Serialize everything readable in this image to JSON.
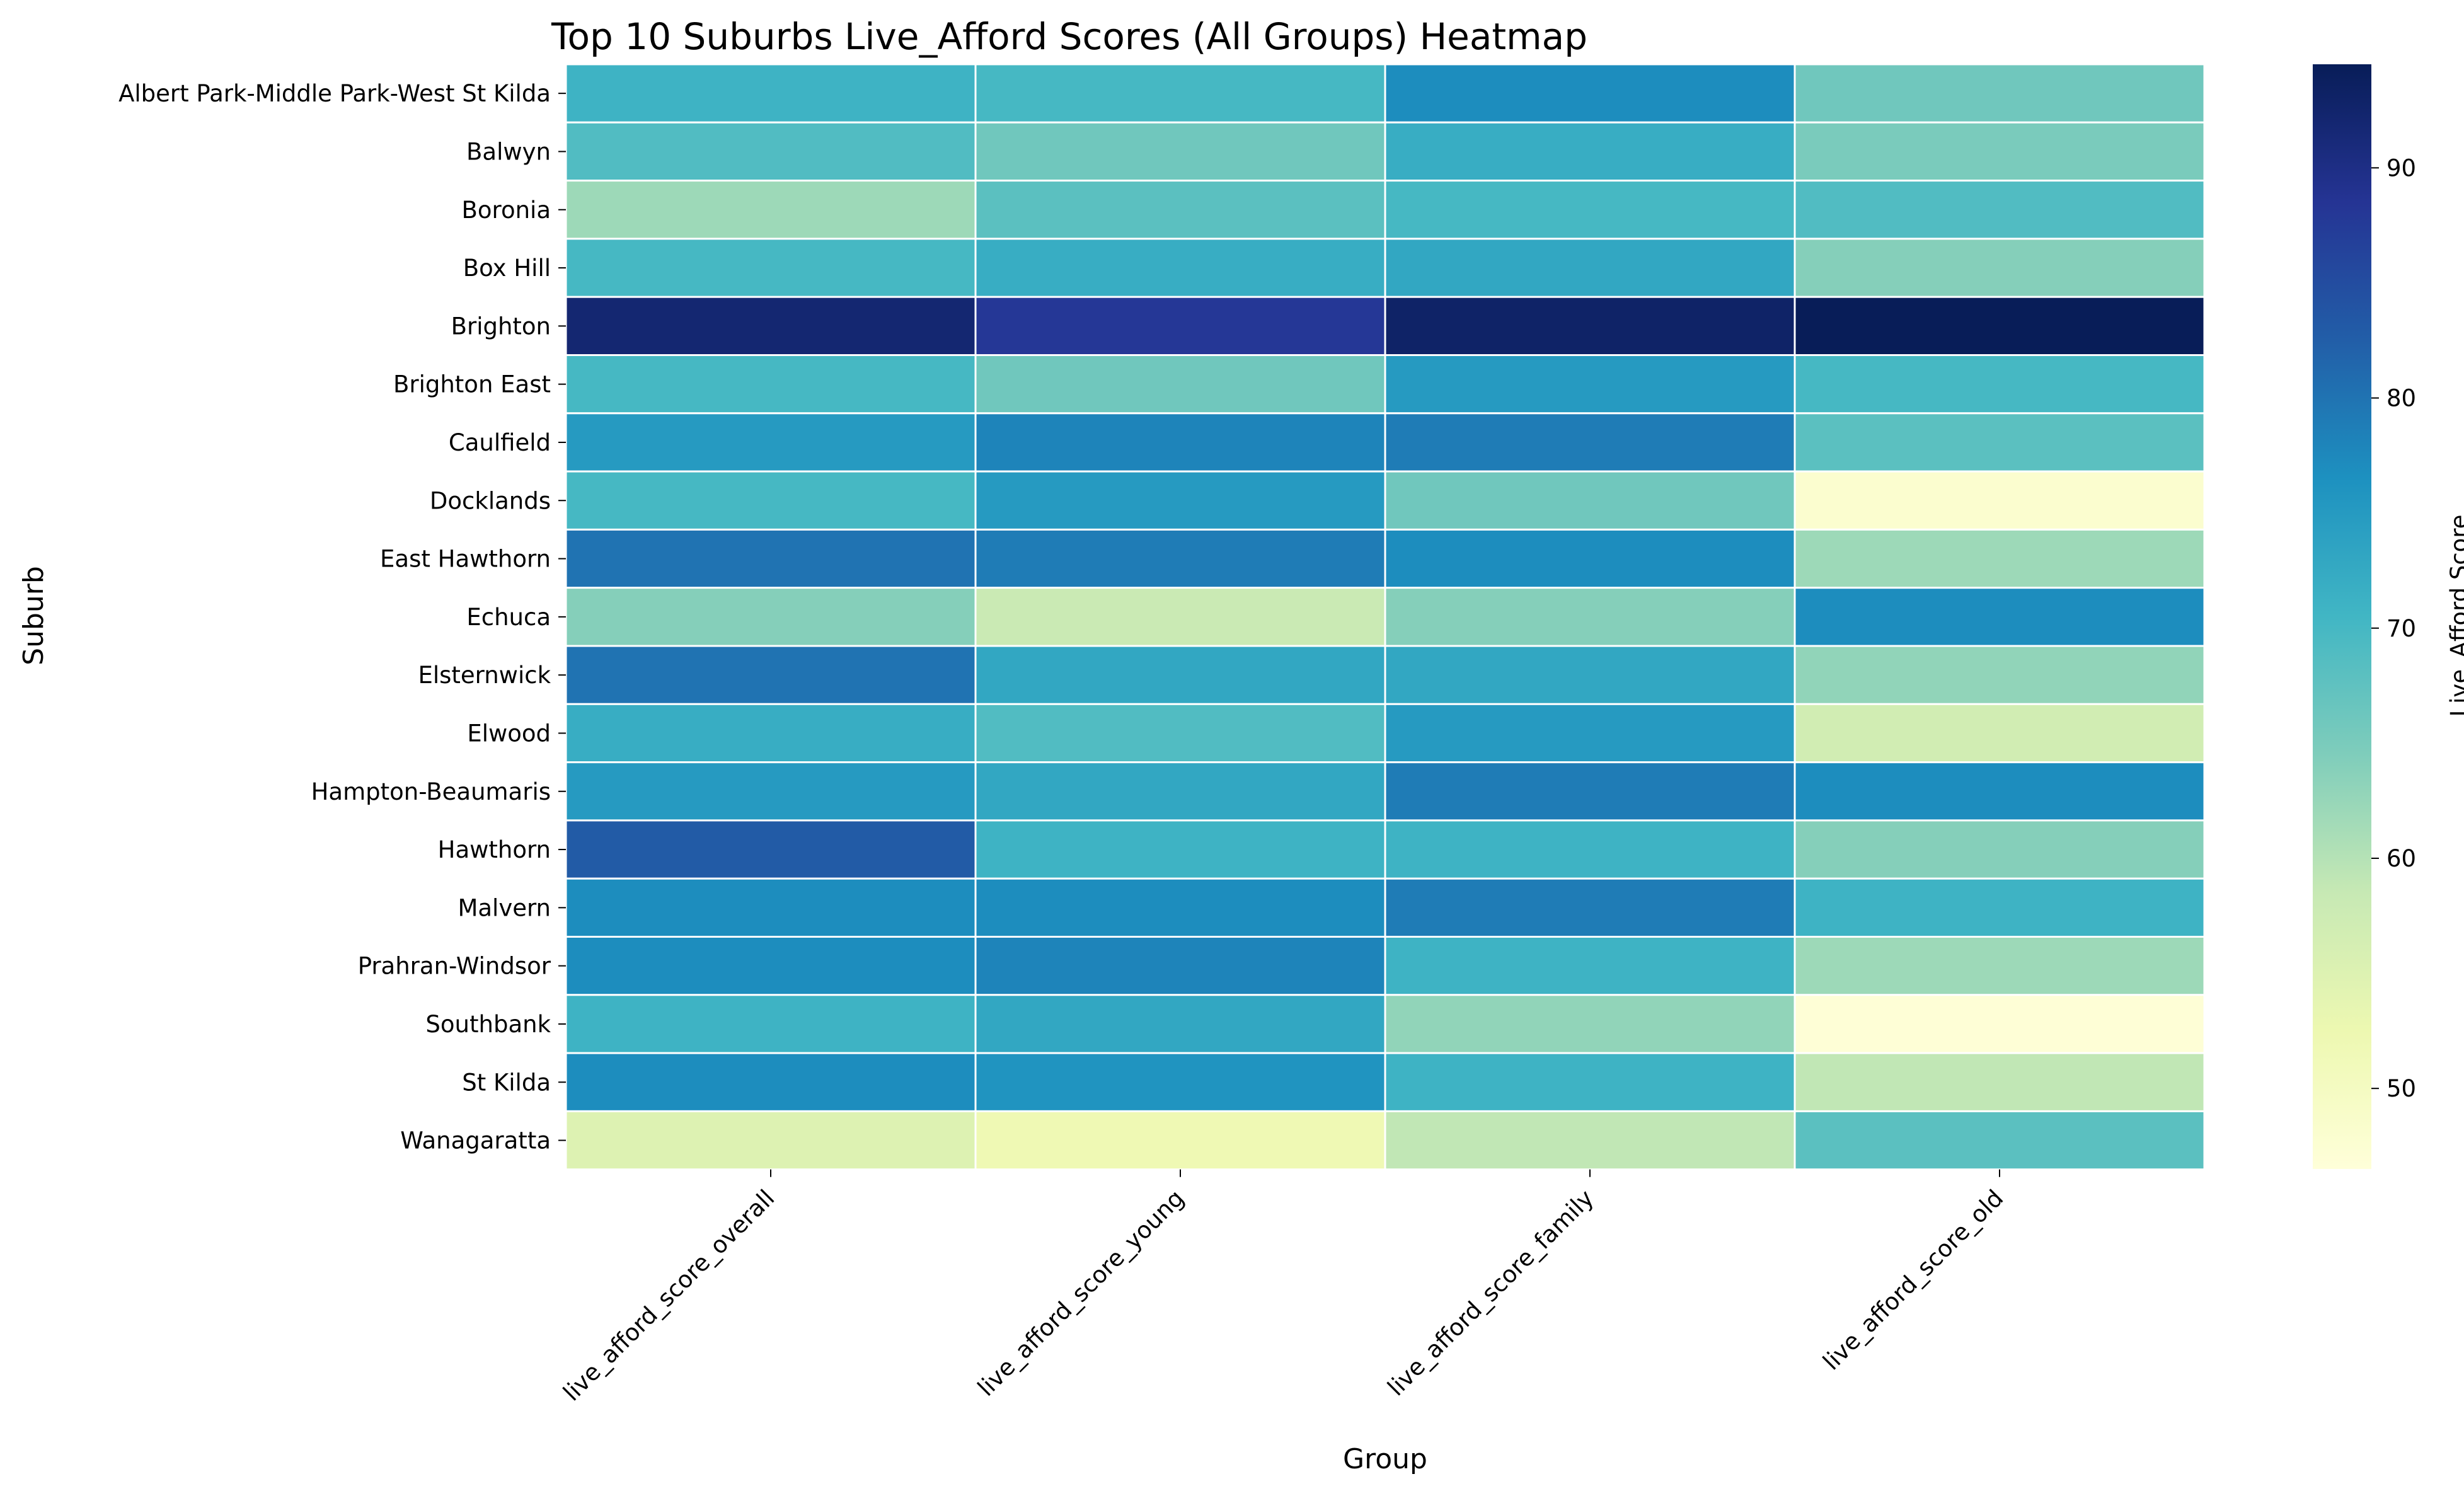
{
  "chart_data": {
    "type": "heatmap",
    "title": "Top 10 Suburbs Live_Afford Scores (All Groups) Heatmap",
    "xlabel": "Group",
    "ylabel": "Suburb",
    "colorbar_label": "Live_Afford Score",
    "colormap": "YlGnBu",
    "color_range": [
      46.5,
      94.5
    ],
    "colorbar_ticks": [
      50,
      60,
      70,
      80,
      90
    ],
    "columns": [
      "live_afford_score_overall",
      "live_afford_score_young",
      "live_afford_score_family",
      "live_afford_score_old"
    ],
    "rows": [
      "Albert Park-Middle Park-West St Kilda",
      "Balwyn",
      "Boronia",
      "Box Hill",
      "Brighton",
      "Brighton East",
      "Caulfield",
      "Docklands",
      "East Hawthorn",
      "Echuca",
      "Elsternwick",
      "Elwood",
      "Hampton-Beaumaris",
      "Hawthorn",
      "Malvern",
      "Prahran-Windsor",
      "Southbank",
      "St Kilda",
      "Wanagaratta"
    ],
    "values": [
      [
        71,
        70,
        77,
        66
      ],
      [
        69,
        66,
        72,
        65
      ],
      [
        62,
        68,
        70,
        69
      ],
      [
        70,
        72,
        73,
        64
      ],
      [
        92,
        88,
        93,
        94.5
      ],
      [
        70,
        66,
        75,
        70
      ],
      [
        75,
        78,
        79,
        68
      ],
      [
        70,
        75,
        66,
        48
      ],
      [
        80,
        79,
        77,
        62
      ],
      [
        64,
        58,
        64,
        77
      ],
      [
        80,
        73,
        73,
        63
      ],
      [
        72,
        69,
        75,
        57
      ],
      [
        75,
        73,
        79,
        77
      ],
      [
        83,
        71,
        71,
        64
      ],
      [
        77,
        77,
        79,
        71
      ],
      [
        77,
        78,
        71,
        62
      ],
      [
        71,
        73,
        63,
        47
      ],
      [
        77,
        76,
        71,
        59
      ],
      [
        55,
        52,
        59,
        68
      ]
    ]
  }
}
